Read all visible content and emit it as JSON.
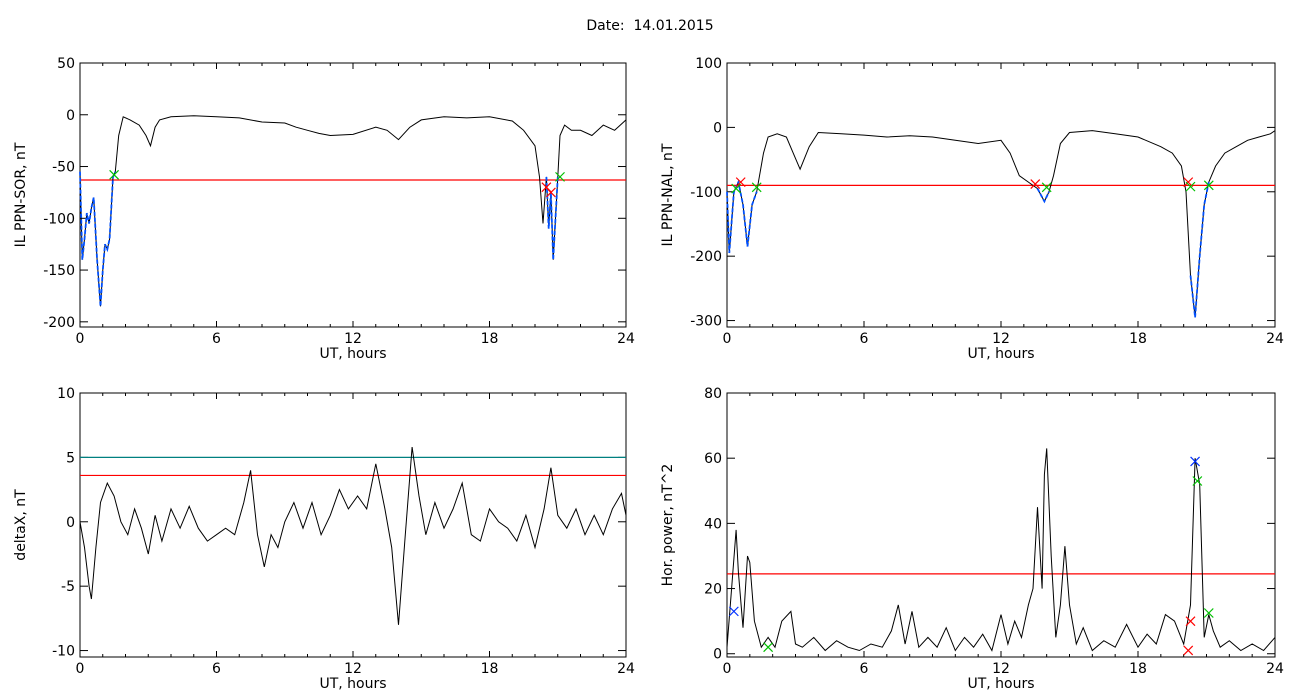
{
  "title": "Date:  14.01.2015",
  "colors": {
    "axis": "#000000",
    "threshold": "#ff0000",
    "threshold2": "#008080",
    "interval": "#0050ff",
    "marker_green": "#00c000",
    "marker_red": "#ff0000",
    "marker_blue": "#0030ff"
  },
  "chart_data": [
    {
      "type": "line",
      "title": "",
      "xlabel": "UT, hours",
      "ylabel": "IL PPN-SOR, nT",
      "xlim": [
        0,
        24
      ],
      "ylim": [
        -205,
        50
      ],
      "xticks": [
        0,
        6,
        12,
        18,
        24
      ],
      "xticklabels": [
        "0",
        "6",
        "12",
        "18",
        "24"
      ],
      "yticks": [
        -200,
        -150,
        -100,
        -50,
        0,
        50
      ],
      "yticklabels": [
        "-200",
        "-150",
        "-100",
        "-50",
        "0",
        "50"
      ],
      "series": [
        {
          "x": [
            0,
            0.1,
            0.2,
            0.3,
            0.4,
            0.5,
            0.6,
            0.75,
            0.9,
            1.0,
            1.1,
            1.2,
            1.3,
            1.45,
            1.55,
            1.7,
            1.9,
            2.2,
            2.6,
            2.9,
            3.1,
            3.3,
            3.5,
            4,
            5,
            6,
            7,
            8,
            9,
            9.5,
            10,
            10.5,
            11,
            12,
            13,
            13.5,
            14,
            14.5,
            15,
            16,
            17,
            18,
            19,
            19.5,
            20,
            20.2,
            20.35,
            20.5,
            20.6,
            20.7,
            20.8,
            20.9,
            21,
            21.1,
            21.3,
            21.6,
            22,
            22.5,
            23,
            23.5,
            24
          ],
          "y": [
            -55,
            -140,
            -120,
            -95,
            -105,
            -90,
            -80,
            -140,
            -185,
            -150,
            -125,
            -130,
            -120,
            -60,
            -55,
            -20,
            -2,
            -5,
            -10,
            -20,
            -30,
            -12,
            -5,
            -2,
            -1,
            -2,
            -3,
            -7,
            -8,
            -12,
            -15,
            -18,
            -20,
            -19,
            -12,
            -15,
            -24,
            -12,
            -5,
            -2,
            -3,
            -2,
            -6,
            -15,
            -30,
            -60,
            -105,
            -60,
            -110,
            -75,
            -140,
            -100,
            -60,
            -20,
            -10,
            -15,
            -15,
            -20,
            -10,
            -15,
            -5
          ]
        },
        {
          "name": "",
          "x": [
            0,
            0.1,
            0.2,
            0.3,
            0.4,
            0.5,
            0.6,
            0.75,
            0.9,
            1.0,
            1.1,
            1.2,
            1.3,
            1.45,
            1.55
          ],
          "y": [
            -55,
            -140,
            -120,
            -95,
            -105,
            -90,
            -80,
            -140,
            -185,
            -150,
            -125,
            -130,
            -120,
            -60,
            -55
          ]
        },
        {
          "name": "",
          "x": [
            20.5,
            20.6,
            20.7,
            20.8,
            20.9,
            21.0
          ],
          "y": [
            -60,
            -110,
            -75,
            -140,
            -100,
            -60
          ]
        }
      ],
      "hlines": [
        {
          "y": -63,
          "color": "#ff0000"
        }
      ],
      "markers": [
        {
          "x": 1.5,
          "y": -58,
          "color": "#00c000"
        },
        {
          "x": 20.5,
          "y": -70,
          "color": "#ff0000"
        },
        {
          "x": 20.7,
          "y": -75,
          "color": "#ff0000"
        },
        {
          "x": 21.1,
          "y": -60,
          "color": "#00c000"
        }
      ]
    },
    {
      "type": "line",
      "title": "",
      "xlabel": "UT, hours",
      "ylabel": "IL PPN-NAL, nT",
      "xlim": [
        0,
        24
      ],
      "ylim": [
        -310,
        100
      ],
      "xticks": [
        0,
        6,
        12,
        18,
        24
      ],
      "xticklabels": [
        "0",
        "6",
        "12",
        "18",
        "24"
      ],
      "yticks": [
        -300,
        -200,
        -100,
        0,
        100
      ],
      "yticklabels": [
        "-300",
        "-200",
        "-100",
        "0",
        "100"
      ],
      "series": [
        {
          "x": [
            0,
            0.1,
            0.3,
            0.5,
            0.7,
            0.9,
            1.1,
            1.3,
            1.6,
            1.8,
            2.2,
            2.6,
            2.9,
            3.2,
            3.6,
            4,
            5,
            6,
            7,
            8,
            9,
            10,
            11,
            12,
            12.4,
            12.8,
            13.2,
            13.6,
            13.9,
            14.1,
            14.3,
            14.6,
            15,
            16,
            17,
            18,
            19,
            19.5,
            19.9,
            20.1,
            20.3,
            20.5,
            20.7,
            20.9,
            21.1,
            21.4,
            21.8,
            22.3,
            22.8,
            23.3,
            23.8,
            24
          ],
          "y": [
            -100,
            -195,
            -100,
            -85,
            -120,
            -185,
            -120,
            -100,
            -40,
            -15,
            -10,
            -15,
            -40,
            -65,
            -30,
            -8,
            -10,
            -12,
            -15,
            -13,
            -15,
            -20,
            -25,
            -20,
            -40,
            -75,
            -85,
            -95,
            -115,
            -100,
            -75,
            -25,
            -8,
            -5,
            -10,
            -15,
            -30,
            -40,
            -60,
            -100,
            -230,
            -295,
            -200,
            -120,
            -85,
            -60,
            -40,
            -30,
            -20,
            -15,
            -10,
            -5
          ]
        },
        {
          "name": "",
          "x": [
            0,
            0.1,
            0.3,
            0.5,
            0.7,
            0.9,
            1.1,
            1.3
          ],
          "y": [
            -100,
            -195,
            -100,
            -85,
            -120,
            -185,
            -120,
            -100
          ]
        },
        {
          "name": "",
          "x": [
            13.6,
            13.9,
            14.1
          ],
          "y": [
            -95,
            -115,
            -100
          ]
        },
        {
          "name": "",
          "x": [
            20.3,
            20.5,
            20.7,
            20.9,
            21.1
          ],
          "y": [
            -230,
            -295,
            -200,
            -120,
            -85
          ]
        }
      ],
      "hlines": [
        {
          "y": -90,
          "color": "#ff0000"
        }
      ],
      "markers": [
        {
          "x": 0.4,
          "y": -95,
          "color": "#00c000"
        },
        {
          "x": 0.6,
          "y": -85,
          "color": "#ff0000"
        },
        {
          "x": 1.3,
          "y": -93,
          "color": "#00c000"
        },
        {
          "x": 13.5,
          "y": -88,
          "color": "#ff0000"
        },
        {
          "x": 14.0,
          "y": -93,
          "color": "#00c000"
        },
        {
          "x": 20.2,
          "y": -85,
          "color": "#ff0000"
        },
        {
          "x": 20.3,
          "y": -92,
          "color": "#00c000"
        },
        {
          "x": 21.1,
          "y": -90,
          "color": "#00c000"
        }
      ]
    },
    {
      "type": "line",
      "title": "",
      "xlabel": "UT, hours",
      "ylabel": "deltaX, nT",
      "xlim": [
        0,
        24
      ],
      "ylim": [
        -10.5,
        10
      ],
      "xticks": [
        0,
        6,
        12,
        18,
        24
      ],
      "xticklabels": [
        "0",
        "6",
        "12",
        "18",
        "24"
      ],
      "yticks": [
        -10,
        -5,
        0,
        5,
        10
      ],
      "yticklabels": [
        "-10",
        "-5",
        "0",
        "5",
        "10"
      ],
      "series": [
        {
          "x": [
            0,
            0.2,
            0.4,
            0.5,
            0.7,
            0.9,
            1.2,
            1.5,
            1.8,
            2.1,
            2.4,
            2.7,
            3.0,
            3.3,
            3.6,
            4.0,
            4.4,
            4.8,
            5.2,
            5.6,
            6.0,
            6.4,
            6.8,
            7.2,
            7.5,
            7.8,
            8.1,
            8.4,
            8.7,
            9.0,
            9.4,
            9.8,
            10.2,
            10.6,
            11.0,
            11.4,
            11.8,
            12.2,
            12.6,
            13.0,
            13.4,
            13.7,
            14.0,
            14.3,
            14.6,
            14.9,
            15.2,
            15.6,
            16.0,
            16.4,
            16.8,
            17.2,
            17.6,
            18.0,
            18.4,
            18.8,
            19.2,
            19.6,
            20.0,
            20.4,
            20.7,
            21.0,
            21.4,
            21.8,
            22.2,
            22.6,
            23.0,
            23.4,
            23.8,
            24
          ],
          "y": [
            0,
            -2,
            -5,
            -6,
            -2,
            1.5,
            3,
            2,
            0,
            -1,
            1,
            -0.5,
            -2.5,
            0.5,
            -1.5,
            1,
            -0.5,
            1.2,
            -0.5,
            -1.5,
            -1,
            -0.5,
            -1,
            1.5,
            4,
            -1,
            -3.5,
            -1,
            -2,
            0,
            1.5,
            -0.5,
            1.5,
            -1,
            0.5,
            2.5,
            1,
            2,
            1,
            4.5,
            1,
            -2,
            -8,
            -1,
            5.8,
            2,
            -1,
            1.5,
            -0.5,
            1,
            3,
            -1,
            -1.5,
            1,
            0,
            -0.5,
            -1.5,
            0.5,
            -2,
            1,
            4.2,
            0.5,
            -0.5,
            1,
            -1,
            0.5,
            -1,
            1,
            2.2,
            0.5
          ]
        }
      ],
      "hlines": [
        {
          "y": 3.6,
          "color": "#ff0000"
        },
        {
          "y": 5.0,
          "color": "#008080"
        }
      ],
      "markers": []
    },
    {
      "type": "line",
      "title": "",
      "xlabel": "UT, hours",
      "ylabel": "Hor. power, nT^2",
      "xlim": [
        0,
        24
      ],
      "ylim": [
        -1,
        80
      ],
      "xticks": [
        0,
        6,
        12,
        18,
        24
      ],
      "xticklabels": [
        "0",
        "6",
        "12",
        "18",
        "24"
      ],
      "yticks": [
        0,
        20,
        40,
        60,
        80
      ],
      "yticklabels": [
        "0",
        "20",
        "40",
        "60",
        "80"
      ],
      "series": [
        {
          "x": [
            0,
            0.2,
            0.4,
            0.5,
            0.7,
            0.9,
            1.0,
            1.2,
            1.5,
            1.8,
            2.1,
            2.4,
            2.8,
            3.0,
            3.3,
            3.8,
            4.3,
            4.8,
            5.3,
            5.8,
            6.3,
            6.8,
            7.2,
            7.5,
            7.8,
            8.1,
            8.4,
            8.8,
            9.2,
            9.6,
            10.0,
            10.4,
            10.8,
            11.2,
            11.6,
            12.0,
            12.3,
            12.6,
            12.9,
            13.2,
            13.4,
            13.6,
            13.8,
            13.9,
            14.0,
            14.2,
            14.4,
            14.6,
            14.8,
            15.0,
            15.3,
            15.6,
            16.0,
            16.5,
            17.0,
            17.5,
            18.0,
            18.4,
            18.8,
            19.2,
            19.6,
            20.0,
            20.3,
            20.5,
            20.7,
            20.9,
            21.1,
            21.3,
            21.6,
            22.0,
            22.5,
            23.0,
            23.5,
            24
          ],
          "y": [
            2,
            20,
            38,
            25,
            8,
            30,
            28,
            10,
            2,
            5,
            2,
            10,
            13,
            3,
            2,
            5,
            1,
            4,
            2,
            1,
            3,
            2,
            7,
            15,
            3,
            13,
            2,
            5,
            2,
            8,
            1,
            5,
            2,
            6,
            1,
            12,
            3,
            10,
            5,
            15,
            20,
            45,
            20,
            55,
            63,
            30,
            5,
            15,
            33,
            15,
            3,
            8,
            1,
            4,
            2,
            9,
            2,
            6,
            3,
            12,
            10,
            3,
            15,
            60,
            52,
            5,
            12,
            7,
            2,
            4,
            1,
            3,
            1,
            5
          ]
        }
      ],
      "hlines": [
        {
          "y": 24.5,
          "color": "#ff0000"
        }
      ],
      "markers": [
        {
          "x": 0.3,
          "y": 13,
          "color": "#0030ff"
        },
        {
          "x": 1.8,
          "y": 2,
          "color": "#00c000"
        },
        {
          "x": 20.2,
          "y": 1,
          "color": "#ff0000"
        },
        {
          "x": 20.3,
          "y": 10,
          "color": "#ff0000"
        },
        {
          "x": 20.5,
          "y": 59,
          "color": "#0030ff"
        },
        {
          "x": 20.6,
          "y": 53,
          "color": "#00c000"
        },
        {
          "x": 21.1,
          "y": 12.5,
          "color": "#00c000"
        }
      ]
    }
  ]
}
